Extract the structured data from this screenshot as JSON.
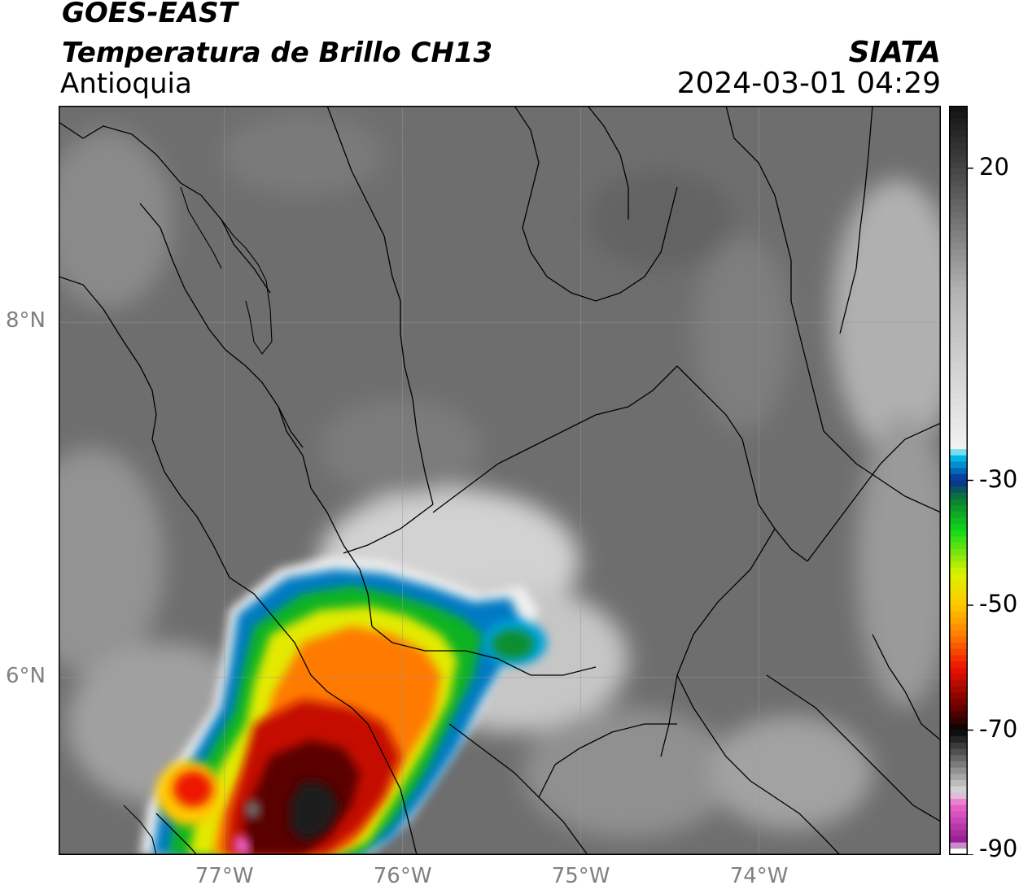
{
  "header": {
    "satellite": "GOES-EAST",
    "product": "Temperatura de Brillo CH13",
    "region": "Antioquia",
    "organization": "SIATA",
    "datetime": "2024-03-01 04:29"
  },
  "axes": {
    "x_ticks": [
      {
        "value": -77,
        "label": "77°W"
      },
      {
        "value": -76,
        "label": "76°W"
      },
      {
        "value": -75,
        "label": "75°W"
      },
      {
        "value": -74,
        "label": "74°W"
      }
    ],
    "y_ticks": [
      {
        "value": 8,
        "label": "8°N"
      },
      {
        "value": 6,
        "label": "6°N"
      }
    ],
    "lon_range": [
      -77.93,
      -72.98
    ],
    "lat_range": [
      5.0,
      9.22
    ]
  },
  "colorbar": {
    "range": [
      -90,
      30
    ],
    "ticks": [
      {
        "value": 20,
        "label": "20"
      },
      {
        "value": -30,
        "label": "-30"
      },
      {
        "value": -50,
        "label": "-50"
      },
      {
        "value": -70,
        "label": "-70"
      },
      {
        "value": -90,
        "label": "-90"
      }
    ],
    "stops": [
      {
        "value": 30,
        "color": "#111111"
      },
      {
        "value": 20,
        "color": "#444444"
      },
      {
        "value": 0,
        "color": "#b4b4b4"
      },
      {
        "value": -25,
        "color": "#f2f2f2"
      },
      {
        "value": -26,
        "color": "#00c8f0"
      },
      {
        "value": -30,
        "color": "#0a2c96"
      },
      {
        "value": -33,
        "color": "#0b7c32"
      },
      {
        "value": -38,
        "color": "#10d81a"
      },
      {
        "value": -45,
        "color": "#dcf200"
      },
      {
        "value": -50,
        "color": "#ffc800"
      },
      {
        "value": -55,
        "color": "#ff7a00"
      },
      {
        "value": -60,
        "color": "#ee1200"
      },
      {
        "value": -67,
        "color": "#5a0000"
      },
      {
        "value": -70,
        "color": "#050505"
      },
      {
        "value": -80,
        "color": "#dcdcdc"
      },
      {
        "value": -82,
        "color": "#ee64cc"
      },
      {
        "value": -88,
        "color": "#901b90"
      },
      {
        "value": -89,
        "color": "#ffffff"
      }
    ],
    "map_gray": "#6e6e6e"
  }
}
